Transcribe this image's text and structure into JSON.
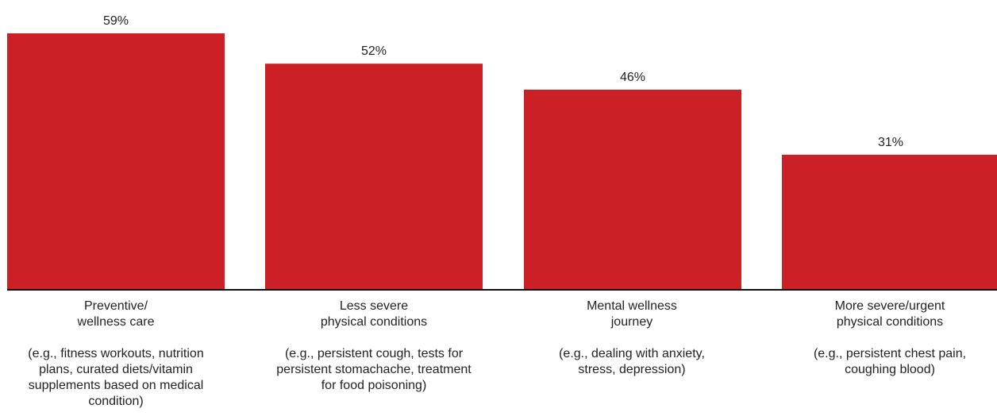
{
  "chart_data": {
    "type": "bar",
    "categories": [
      "Preventive/\nwellness care",
      "Less severe\nphysical conditions",
      "Mental wellness\njourney",
      "More severe/urgent\nphysical conditions"
    ],
    "category_examples": [
      "(e.g., fitness workouts, nutrition\nplans, curated diets/vitamin\nsupplements based on medical\ncondition)",
      "(e.g., persistent cough, tests for\npersistent stomachache, treatment\nfor food poisoning)",
      "(e.g., dealing with anxiety,\nstress, depression)",
      "(e.g., persistent chest pain,\ncoughing blood)"
    ],
    "values": [
      59,
      52,
      46,
      31
    ],
    "value_labels": [
      "59%",
      "52%",
      "46%",
      "31%"
    ],
    "ylim": [
      0,
      59
    ],
    "grid": false,
    "bar_color": "#cc2027",
    "axis_color": "#111111"
  }
}
